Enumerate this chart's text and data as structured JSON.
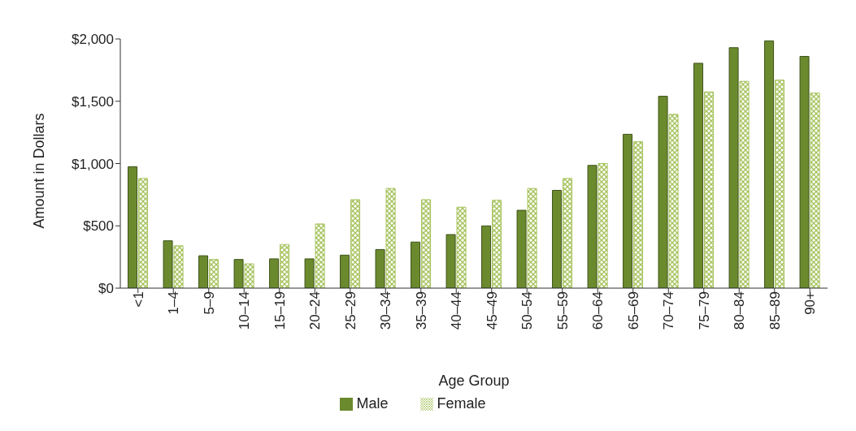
{
  "chart_data": {
    "type": "bar",
    "xlabel": "Age Group",
    "ylabel": "Amount in Dollars",
    "categories": [
      "<1",
      "1–4",
      "5–9",
      "10–14",
      "15–19",
      "20–24",
      "25–29",
      "30–34",
      "35–39",
      "40–44",
      "45–49",
      "50–54",
      "55–59",
      "60–64",
      "65–69",
      "70–74",
      "75–79",
      "80–84",
      "85–89",
      "90+"
    ],
    "series": [
      {
        "name": "Male",
        "color": "#6b8a2e",
        "values": [
          975,
          380,
          260,
          230,
          235,
          235,
          265,
          310,
          370,
          430,
          500,
          625,
          785,
          985,
          1235,
          1540,
          1805,
          1930,
          1985,
          1860
        ]
      },
      {
        "name": "Female",
        "color": "#a4c25a",
        "values": [
          880,
          340,
          230,
          195,
          350,
          515,
          710,
          800,
          710,
          650,
          705,
          800,
          880,
          1000,
          1175,
          1395,
          1575,
          1660,
          1670,
          1565
        ]
      }
    ],
    "ylim": [
      0,
      2000
    ],
    "yticks": [
      {
        "value": 0,
        "label": "$0"
      },
      {
        "value": 500,
        "label": "$500"
      },
      {
        "value": 1000,
        "label": "$1,000"
      },
      {
        "value": 1500,
        "label": "$1,500"
      },
      {
        "value": 2000,
        "label": "$2,000"
      }
    ],
    "grid": false,
    "legend": "bottom"
  }
}
